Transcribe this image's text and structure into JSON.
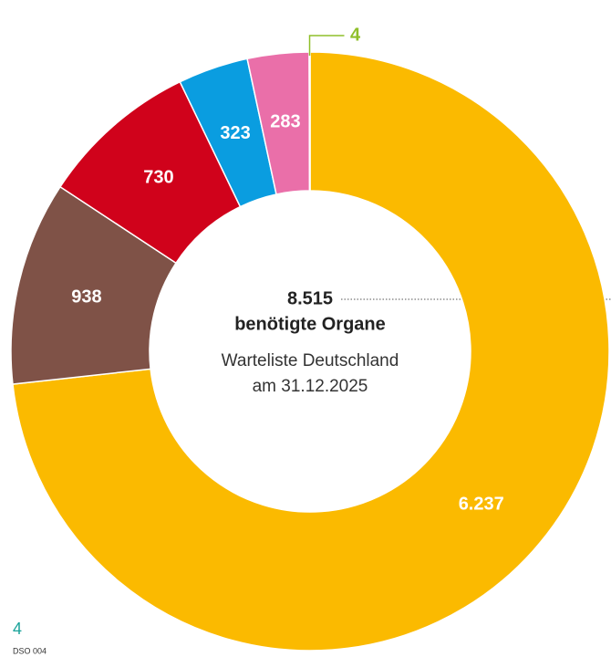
{
  "chart_data": {
    "type": "donut",
    "categories": [
      null,
      null,
      null,
      null,
      null,
      null
    ],
    "values": [
      6237,
      938,
      730,
      323,
      283,
      4
    ],
    "value_labels": [
      "6.237",
      "938",
      "730",
      "323",
      "283",
      "4"
    ],
    "colors": [
      "#fbba00",
      "#7f5247",
      "#d0021b",
      "#0a9de0",
      "#ea6fa9",
      "#8fbf2a"
    ],
    "center_text": [
      "8.515",
      "benötigte Organe",
      "Warteliste Deutschland",
      "am 31.12.2025"
    ],
    "footnote": "4",
    "source": "DSO 004"
  }
}
